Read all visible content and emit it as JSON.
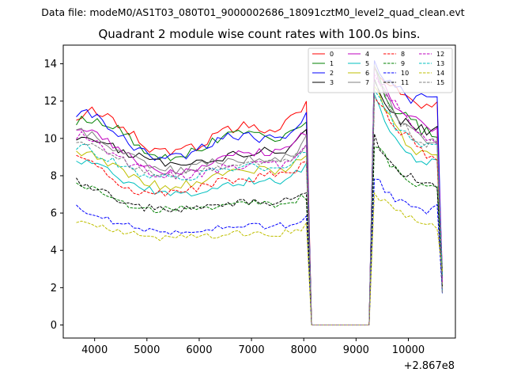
{
  "figure": {
    "suptitle": "Data file: modeM0/AS1T03_080T01_9000002686_18091cztM0_level2_quad_clean.evt"
  },
  "chart_data": {
    "type": "line",
    "title": "Quadrant 2 module wise count rates with 100.0s bins.",
    "xlabel": "",
    "ylabel": "",
    "x_offset_label": "+2.867e8",
    "xlim": [
      3400,
      10900
    ],
    "ylim": [
      -0.7,
      15.0
    ],
    "xticks": [
      4000,
      5000,
      6000,
      7000,
      8000,
      9000,
      10000
    ],
    "yticks": [
      0,
      2,
      4,
      6,
      8,
      10,
      12,
      14
    ],
    "legend_position": "top-right",
    "x_start": 3650,
    "x_step": 100,
    "n_points": 71,
    "gap": {
      "start": 8150,
      "end": 9250,
      "value": 0
    },
    "series": [
      {
        "name": "0",
        "color": "#ff0000",
        "dash": false,
        "p1": [
          11.2,
          11.5,
          11.2,
          10.8,
          10.3,
          9.6,
          9.3,
          9.2,
          9.4,
          9.6,
          10.1,
          10.4,
          10.6,
          10.8,
          10.5,
          10.3,
          11.3,
          11.9
        ],
        "p2": [
          14.0,
          13.6,
          13.2,
          12.9,
          12.7,
          12.5,
          12.3,
          12.2,
          12.0,
          11.9,
          11.9,
          11.8,
          11.9
        ]
      },
      {
        "name": "1",
        "color": "#008000",
        "dash": false,
        "p1": [
          10.9,
          11.1,
          10.9,
          10.6,
          10.0,
          9.4,
          9.1,
          9.0,
          9.2,
          9.5,
          9.8,
          10.1,
          10.3,
          10.4,
          10.2,
          10.0,
          10.4,
          11.0
        ],
        "p2": [
          14.2,
          13.4,
          12.3,
          12.0,
          11.6,
          11.3,
          11.1,
          10.9,
          10.7,
          10.5,
          10.3,
          10.2,
          9.8
        ]
      },
      {
        "name": "2",
        "color": "#0000ff",
        "dash": false,
        "p1": [
          11.3,
          11.4,
          10.8,
          10.2,
          9.6,
          9.2,
          9.0,
          8.9,
          9.0,
          9.4,
          9.8,
          10.1,
          10.1,
          10.1,
          10.0,
          9.9,
          10.3,
          11.2
        ],
        "p2": [
          13.9,
          13.4,
          13.0,
          12.9,
          12.8,
          12.6,
          12.4,
          12.2,
          12.2,
          12.1,
          12.2,
          12.3,
          12.4
        ]
      },
      {
        "name": "3",
        "color": "#000000",
        "dash": false,
        "p1": [
          10.0,
          10.1,
          9.8,
          9.5,
          9.1,
          8.9,
          8.7,
          8.6,
          8.6,
          8.7,
          8.9,
          9.0,
          9.1,
          9.2,
          9.3,
          9.3,
          9.6,
          10.5
        ],
        "p2": [
          13.0,
          12.2,
          11.7,
          11.4,
          11.2,
          11.0,
          10.9,
          10.8,
          10.6,
          10.5,
          10.4,
          10.5,
          10.6
        ]
      },
      {
        "name": "4",
        "color": "#bf00bf",
        "dash": false,
        "p1": [
          10.5,
          10.6,
          10.1,
          9.5,
          9.0,
          8.5,
          8.3,
          8.3,
          8.3,
          8.5,
          8.7,
          8.9,
          9.1,
          9.2,
          9.2,
          9.2,
          9.6,
          10.4
        ],
        "p2": [
          13.8,
          13.1,
          12.6,
          12.3,
          11.9,
          11.6,
          11.4,
          11.1,
          10.9,
          10.7,
          10.5,
          10.4,
          10.3
        ]
      },
      {
        "name": "5",
        "color": "#00bfbf",
        "dash": false,
        "p1": [
          8.8,
          8.7,
          8.4,
          8.0,
          7.6,
          7.3,
          7.1,
          7.0,
          7.0,
          7.1,
          7.3,
          7.5,
          7.6,
          7.7,
          7.7,
          7.6,
          8.0,
          8.6
        ],
        "p2": [
          12.3,
          11.7,
          11.1,
          10.6,
          10.1,
          9.6,
          9.2,
          8.9,
          8.7,
          8.6,
          8.7,
          8.9,
          9.0
        ]
      },
      {
        "name": "6",
        "color": "#bfbf00",
        "dash": false,
        "p1": [
          9.3,
          9.3,
          8.9,
          8.4,
          8.0,
          7.7,
          7.5,
          7.4,
          7.5,
          7.7,
          7.9,
          8.1,
          8.2,
          8.3,
          8.3,
          8.2,
          8.5,
          9.2
        ],
        "p2": [
          12.8,
          12.2,
          11.6,
          11.1,
          10.6,
          10.2,
          9.9,
          9.6,
          9.3,
          9.2,
          9.1,
          9.1,
          9.1
        ]
      },
      {
        "name": "7",
        "color": "#808080",
        "dash": false,
        "p1": [
          10.4,
          10.3,
          9.9,
          9.4,
          9.0,
          8.6,
          8.4,
          8.3,
          8.3,
          8.5,
          8.7,
          8.8,
          8.9,
          9.0,
          8.9,
          8.8,
          9.1,
          10.0
        ],
        "p2": [
          14.0,
          13.3,
          12.6,
          12.0,
          11.5,
          11.1,
          10.8,
          10.5,
          10.2,
          10.0,
          9.8,
          9.7,
          9.6
        ]
      },
      {
        "name": "8",
        "color": "#ff0000",
        "dash": true,
        "p1": [
          9.0,
          8.7,
          8.2,
          7.7,
          7.3,
          7.1,
          7.1,
          7.1,
          7.2,
          7.4,
          7.6,
          7.7,
          7.8,
          7.9,
          8.0,
          8.0,
          8.2,
          8.8
        ],
        "p2": [
          12.3,
          11.9,
          11.5,
          11.0,
          10.6,
          10.3,
          10.1,
          9.9,
          9.6,
          9.4,
          9.2,
          9.0,
          9.0
        ]
      },
      {
        "name": "9",
        "color": "#008000",
        "dash": true,
        "p1": [
          7.5,
          7.3,
          7.0,
          6.6,
          6.4,
          6.3,
          6.2,
          6.2,
          6.2,
          6.3,
          6.3,
          6.4,
          6.4,
          6.5,
          6.5,
          6.5,
          6.6,
          6.9
        ],
        "p2": [
          9.7,
          9.4,
          9.0,
          8.7,
          8.4,
          8.1,
          7.9,
          7.7,
          7.6,
          7.5,
          7.4,
          7.4,
          7.4
        ]
      },
      {
        "name": "10",
        "color": "#0000ff",
        "dash": true,
        "p1": [
          6.3,
          6.1,
          5.8,
          5.5,
          5.3,
          5.1,
          5.0,
          4.9,
          4.9,
          5.0,
          5.1,
          5.2,
          5.3,
          5.3,
          5.3,
          5.3,
          5.4,
          5.8
        ],
        "p2": [
          8.0,
          7.6,
          7.3,
          7.0,
          6.8,
          6.6,
          6.5,
          6.3,
          6.2,
          6.2,
          6.1,
          6.2,
          6.3
        ]
      },
      {
        "name": "11",
        "color": "#000000",
        "dash": true,
        "p1": [
          7.7,
          7.4,
          7.1,
          6.8,
          6.5,
          6.3,
          6.2,
          6.2,
          6.2,
          6.3,
          6.4,
          6.5,
          6.6,
          6.6,
          6.6,
          6.6,
          6.8,
          7.2
        ],
        "p2": [
          10.0,
          9.5,
          9.2,
          8.8,
          8.5,
          8.3,
          8.1,
          7.9,
          7.7,
          7.6,
          7.5,
          7.5,
          7.5
        ]
      },
      {
        "name": "12",
        "color": "#bf00bf",
        "dash": true,
        "p1": [
          10.2,
          10.0,
          9.5,
          9.0,
          8.6,
          8.3,
          8.1,
          8.0,
          8.0,
          8.1,
          8.3,
          8.4,
          8.5,
          8.6,
          8.6,
          8.6,
          8.9,
          9.5
        ],
        "p2": [
          13.2,
          12.9,
          12.5,
          12.2,
          11.9,
          11.6,
          11.2,
          10.9,
          10.6,
          10.3,
          10.0,
          9.8,
          9.7
        ]
      },
      {
        "name": "13",
        "color": "#00bfbf",
        "dash": true,
        "p1": [
          9.6,
          9.4,
          9.0,
          8.6,
          8.3,
          8.0,
          7.9,
          7.8,
          7.9,
          8.0,
          8.2,
          8.3,
          8.4,
          8.5,
          8.5,
          8.4,
          8.7,
          9.3
        ],
        "p2": [
          12.4,
          12.0,
          11.5,
          11.1,
          10.7,
          10.4,
          10.1,
          9.9,
          9.7,
          9.6,
          9.5,
          9.5,
          9.5
        ]
      },
      {
        "name": "14",
        "color": "#bfbf00",
        "dash": true,
        "p1": [
          5.6,
          5.4,
          5.2,
          5.0,
          4.9,
          4.8,
          4.7,
          4.7,
          4.7,
          4.7,
          4.8,
          4.8,
          4.9,
          4.9,
          4.9,
          4.9,
          5.0,
          5.3
        ],
        "p2": [
          7.0,
          6.8,
          6.6,
          6.4,
          6.2,
          6.0,
          5.8,
          5.7,
          5.6,
          5.5,
          5.4,
          5.3,
          5.3
        ]
      },
      {
        "name": "15",
        "color": "#808080",
        "dash": true,
        "p1": [
          9.9,
          9.7,
          9.3,
          8.9,
          8.6,
          8.3,
          8.1,
          8.1,
          8.1,
          8.2,
          8.4,
          8.5,
          8.6,
          8.7,
          8.7,
          8.7,
          8.9,
          9.6
        ],
        "p2": [
          13.0,
          12.6,
          12.1,
          11.6,
          11.2,
          10.9,
          10.6,
          10.3,
          10.1,
          9.9,
          9.8,
          9.8,
          9.8
        ]
      }
    ]
  }
}
